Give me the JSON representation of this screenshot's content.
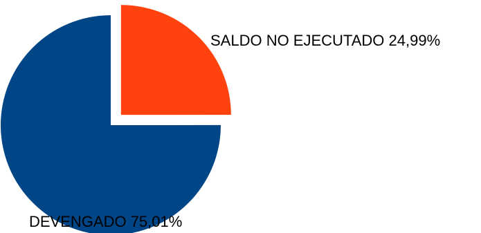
{
  "chart_data": {
    "type": "pie",
    "title": "",
    "slices": [
      {
        "label": "DEVENGADO",
        "value": 75.01,
        "value_text": "75,01%",
        "color": "#004586",
        "exploded": false
      },
      {
        "label": "SALDO NO EJECUTADO",
        "value": 24.99,
        "value_text": "24,99%",
        "color": "#FF420E",
        "exploded": true
      }
    ],
    "legend": "none",
    "data_labels": "label and percent"
  },
  "labels": {
    "devengado": "DEVENGADO 75,01%",
    "saldo": "SALDO NO EJECUTADO 24,99%"
  }
}
